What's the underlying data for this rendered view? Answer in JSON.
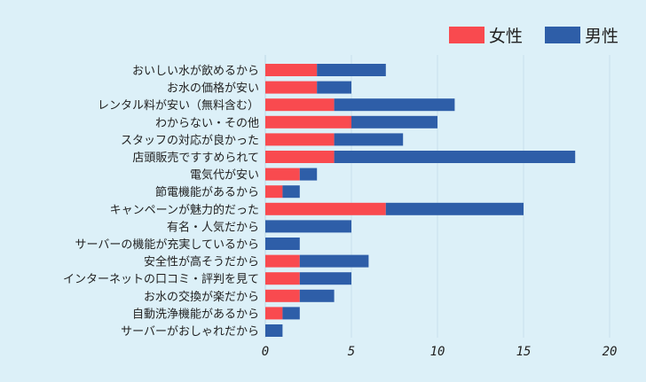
{
  "chart_data": {
    "type": "bar",
    "orientation": "horizontal",
    "stacked": true,
    "categories": [
      "おいしい水が飲めるから",
      "お水の価格が安い",
      "レンタル料が安い（無料含む）",
      "わからない・その他",
      "スタッフの対応が良かった",
      "店頭販売ですすめられて",
      "電気代が安い",
      "節電機能があるから",
      "キャンペーンが魅力的だった",
      "有名・人気だから",
      "サーバーの機能が充実しているから",
      "安全性が高そうだから",
      "インターネットの口コミ・評判を見て",
      "お水の交換が楽だから",
      "自動洗浄機能があるから",
      "サーバーがおしゃれだから"
    ],
    "series": [
      {
        "name": "女性",
        "color": "#f94a4f",
        "values": [
          3,
          3,
          4,
          5,
          4,
          4,
          2,
          1,
          7,
          0,
          0,
          2,
          2,
          2,
          1,
          0
        ]
      },
      {
        "name": "男性",
        "color": "#2e5ea8",
        "values": [
          4,
          2,
          7,
          5,
          4,
          14,
          1,
          1,
          8,
          5,
          2,
          4,
          3,
          2,
          1,
          1
        ]
      }
    ],
    "xlim": [
      0,
      20
    ],
    "xticks": [
      "0",
      "5",
      "10",
      "15",
      "20"
    ],
    "grid": true,
    "legend_position": "top-right",
    "title": "",
    "xlabel": "",
    "ylabel": ""
  }
}
